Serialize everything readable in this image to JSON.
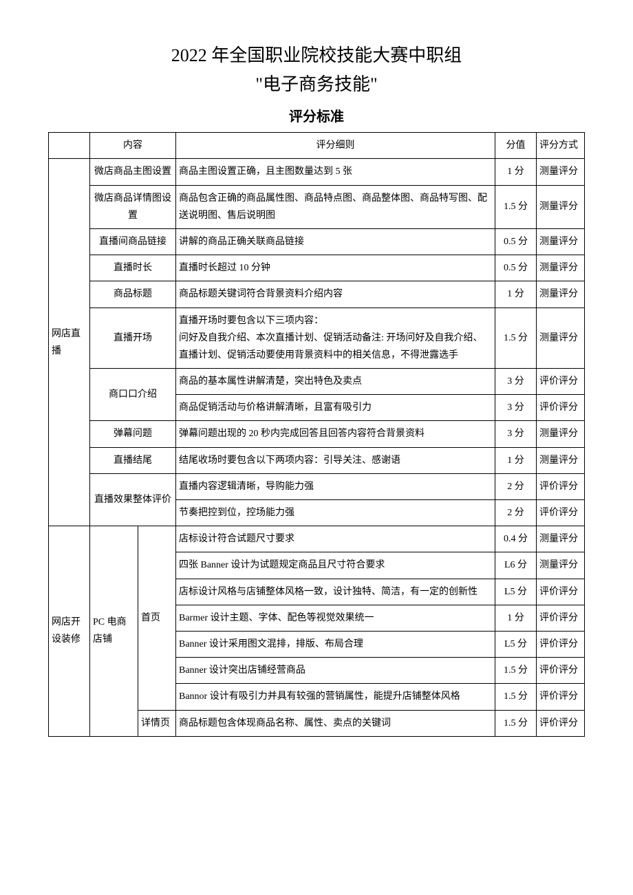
{
  "title_line1": "2022 年全国职业院校技能大赛中职组",
  "title_line2": "\"电子商务技能\"",
  "title_line3": "评分标准",
  "header": {
    "content": "内容",
    "detail": "评分细则",
    "score": "分值",
    "method": "评分方式"
  },
  "section1": {
    "name": "网店直播",
    "rows": [
      {
        "sub": "微店商品主图设置",
        "detail": "商品主图设置正确，且主图数量达到 5 张",
        "score": "1 分",
        "method": "测量评分"
      },
      {
        "sub": "微店商品详情图设置",
        "detail": "商品包含正确的商品属性图、商品特点图、商品整体图、商品特写图、配送说明图、售后说明图",
        "score": "1.5 分",
        "method": "测量评分"
      },
      {
        "sub": "直播间商品链接",
        "detail": "讲解的商品正确关联商品链接",
        "score": "0.5 分",
        "method": "测量评分"
      },
      {
        "sub": "直播时长",
        "detail": "直播时长超过 10 分钟",
        "score": "0.5 分",
        "method": "测量评分"
      },
      {
        "sub": "商品标题",
        "detail": "商品标题关键词符合背景资料介绍内容",
        "score": "1 分",
        "method": "测量评分"
      },
      {
        "sub": "直播开场",
        "detail": "直播开场时要包含以下三项内容：\n问好及自我介绍、本次直播计划、促销活动备注: 开场问好及自我介绍、直播计划、促销活动要使用背景资料中的相关信息，不得泄露选手",
        "score": "1.5 分",
        "method": "测量评分"
      },
      {
        "sub": "商口口介绍",
        "detail1": "商品的基本属性讲解清楚，突出特色及卖点",
        "score1": "3 分",
        "method1": "评价评分",
        "detail2": "商品促销活动与价格讲解清晰，且富有吸引力",
        "score2": "3 分",
        "method2": "评价评分"
      },
      {
        "sub": "弹幕问题",
        "detail": "弹幕问题出现的 20 秒内完成回答且回答内容符合背景资料",
        "score": "3 分",
        "method": "测量评分"
      },
      {
        "sub": "直播结尾",
        "detail": "结尾收场时要包含以下两项内容：引导关注、感谢语",
        "score": "1 分",
        "method": "测量评分"
      },
      {
        "sub": "直播效果整体评价",
        "detail1": "直播内容逻辑清晰，导购能力强",
        "score1": "2 分",
        "method1": "评价评分",
        "detail2": "节奏把控到位，控场能力强",
        "score2": "2 分",
        "method2": "评价评分"
      }
    ]
  },
  "section2": {
    "name": "网店开设装修",
    "sub1": "PC 电商店铺",
    "homepage": "首页",
    "detailpage": "详情页",
    "rows": [
      {
        "detail": "店标设计符合试题尺寸要求",
        "score": "0.4 分",
        "method": "测量评分"
      },
      {
        "detail": "四张 Banner 设计为试题规定商品且尺寸符合要求",
        "score": "L6 分",
        "method": "测量评分"
      },
      {
        "detail": "店标设计风格与店铺整体风格一致，设计独特、简洁，有一定的创新性",
        "score": "L5 分",
        "method": "评价评分"
      },
      {
        "detail": "Barmer 设计主题、字体、配色等视觉效果统一",
        "score": "1 分",
        "method": "评价评分"
      },
      {
        "detail": "Banner 设计采用图文混排，排版、布局合理",
        "score": "L5 分",
        "method": "评价评分"
      },
      {
        "detail": "Banner 设计突出店铺经营商品",
        "score": "1.5 分",
        "method": "评价评分"
      },
      {
        "detail": "Bannor 设计有吸引力并具有较强的营销属性，能提升店铺整体风格",
        "score": "1.5 分",
        "method": "评价评分"
      }
    ],
    "detail_row": {
      "detail": "商品标题包含体现商品名称、属性、卖点的关键词",
      "score": "1.5 分",
      "method": "评价评分"
    }
  }
}
